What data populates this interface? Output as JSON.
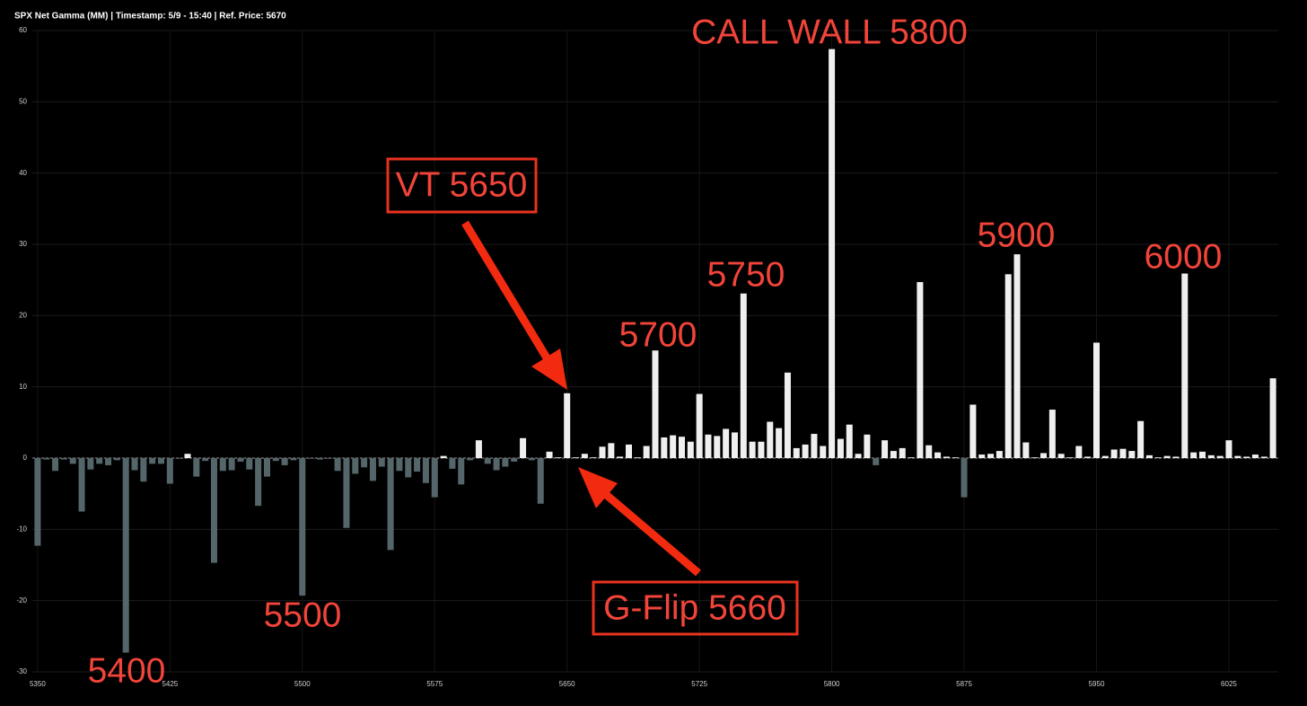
{
  "chart_data": {
    "type": "bar",
    "title": "SPX Net Gamma (MM) | Timestamp: 5/9 - 15:40  | Ref. Price: 5670",
    "x": [
      5350,
      5355,
      5360,
      5365,
      5370,
      5375,
      5380,
      5385,
      5390,
      5395,
      5400,
      5405,
      5410,
      5415,
      5420,
      5425,
      5430,
      5435,
      5440,
      5445,
      5450,
      5455,
      5460,
      5465,
      5470,
      5475,
      5480,
      5485,
      5490,
      5495,
      5500,
      5505,
      5510,
      5515,
      5520,
      5525,
      5530,
      5535,
      5540,
      5545,
      5550,
      5555,
      5560,
      5565,
      5570,
      5575,
      5580,
      5585,
      5590,
      5595,
      5600,
      5605,
      5610,
      5615,
      5620,
      5625,
      5630,
      5635,
      5640,
      5645,
      5650,
      5655,
      5660,
      5665,
      5670,
      5675,
      5680,
      5685,
      5690,
      5695,
      5700,
      5705,
      5710,
      5715,
      5720,
      5725,
      5730,
      5735,
      5740,
      5745,
      5750,
      5755,
      5760,
      5765,
      5770,
      5775,
      5780,
      5785,
      5790,
      5795,
      5800,
      5805,
      5810,
      5815,
      5820,
      5825,
      5830,
      5835,
      5840,
      5845,
      5850,
      5855,
      5860,
      5865,
      5870,
      5875,
      5880,
      5885,
      5890,
      5895,
      5900,
      5905,
      5910,
      5915,
      5920,
      5925,
      5930,
      5935,
      5940,
      5945,
      5950,
      5955,
      5960,
      5965,
      5970,
      5975,
      5980,
      5985,
      5990,
      5995,
      6000,
      6005,
      6010,
      6015,
      6020,
      6025,
      6030,
      6035,
      6040,
      6045,
      6050
    ],
    "values": [
      -12.3,
      -0.2,
      -1.8,
      -0.2,
      -0.8,
      -7.5,
      -1.6,
      -0.8,
      -1.0,
      -0.3,
      -27.3,
      -1.7,
      -3.3,
      -0.8,
      -0.8,
      -3.6,
      -0.1,
      0.6,
      -2.6,
      -0.4,
      -14.7,
      -1.8,
      -1.7,
      -0.5,
      -1.6,
      -6.7,
      -2.6,
      -0.4,
      -1.0,
      -0.3,
      -19.3,
      -0.1,
      -0.2,
      -0.1,
      -1.8,
      -9.8,
      -2.2,
      -1.3,
      -3.2,
      -1.2,
      -12.9,
      -1.8,
      -2.7,
      -1.9,
      -3.5,
      -5.5,
      0.3,
      -1.5,
      -3.7,
      -0.3,
      2.5,
      -0.8,
      -1.7,
      -1.2,
      -0.5,
      2.8,
      -0.3,
      -6.4,
      0.9,
      0.1,
      9.1,
      0.1,
      0.6,
      0.1,
      1.6,
      2.1,
      0.2,
      1.9,
      0.1,
      1.7,
      15.1,
      2.9,
      3.2,
      3.0,
      2.3,
      9.0,
      3.3,
      3.1,
      4.1,
      3.6,
      23.1,
      2.3,
      2.3,
      5.1,
      4.2,
      12.0,
      1.4,
      1.9,
      3.4,
      1.7,
      57.4,
      2.7,
      4.7,
      0.6,
      3.3,
      -1.0,
      2.5,
      1.0,
      1.4,
      0.1,
      24.7,
      1.8,
      0.8,
      0.2,
      0.1,
      -5.5,
      7.5,
      0.5,
      0.6,
      1.0,
      25.8,
      28.6,
      2.2,
      0.1,
      0.7,
      6.8,
      0.6,
      0.1,
      1.7,
      0.2,
      16.2,
      0.3,
      1.2,
      1.3,
      1.0,
      5.2,
      0.4,
      0.1,
      0.3,
      0.2,
      25.9,
      0.8,
      0.9,
      0.4,
      0.3,
      2.5,
      0.3,
      0.2,
      0.5,
      0.2,
      11.2
    ],
    "positive_color": "#efefef",
    "negative_color": "#55666a",
    "xlim": [
      5347,
      6053
    ],
    "xticks": [
      5350,
      5425,
      5500,
      5575,
      5650,
      5725,
      5800,
      5875,
      5950,
      6025
    ],
    "ylim": [
      -30,
      60
    ],
    "yticks": [
      -30,
      -20,
      -10,
      0,
      10,
      20,
      30,
      40,
      50,
      60
    ],
    "grid": true,
    "annotations": [
      "CALL WALL 5800",
      "VT 5650",
      "G-Flip 5660",
      "5700",
      "5750",
      "5900",
      "6000",
      "5500",
      "5400"
    ]
  }
}
